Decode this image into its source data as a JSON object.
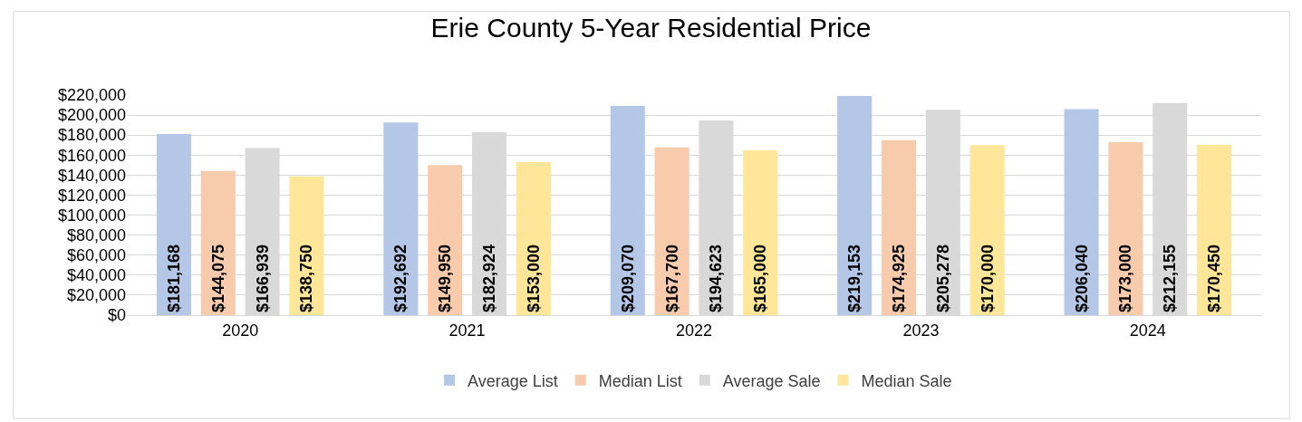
{
  "chart_data": {
    "type": "bar",
    "title": "Erie County 5-Year Residential Price",
    "categories": [
      "2020",
      "2021",
      "2022",
      "2023",
      "2024"
    ],
    "series": [
      {
        "name": "Average List",
        "color": "#b4c7e7",
        "values": [
          181168,
          192692,
          209070,
          219153,
          206040
        ],
        "value_labels": [
          "$181,168",
          "$192,692",
          "$209,070",
          "$219,153",
          "$206,040"
        ]
      },
      {
        "name": "Median List",
        "color": "#f8cbad",
        "values": [
          144075,
          149950,
          167700,
          174925,
          173000
        ],
        "value_labels": [
          "$144,075",
          "$149,950",
          "$167,700",
          "$174,925",
          "$173,000"
        ]
      },
      {
        "name": "Average Sale",
        "color": "#d9d9d9",
        "values": [
          166939,
          182924,
          194623,
          205278,
          212155
        ],
        "value_labels": [
          "$166,939",
          "$182,924",
          "$194,623",
          "$205,278",
          "$212,155"
        ]
      },
      {
        "name": "Median Sale",
        "color": "#ffe699",
        "values": [
          138750,
          153000,
          165000,
          170000,
          170450
        ],
        "value_labels": [
          "$138,750",
          "$153,000",
          "$165,000",
          "$170,000",
          "$170,450"
        ]
      }
    ],
    "ylim": [
      0,
      220000
    ],
    "yticks": [
      {
        "value": 0,
        "label": "$0"
      },
      {
        "value": 20000,
        "label": "$20,000"
      },
      {
        "value": 40000,
        "label": "$40,000"
      },
      {
        "value": 60000,
        "label": "$60,000"
      },
      {
        "value": 80000,
        "label": "$80,000"
      },
      {
        "value": 100000,
        "label": "$100,000"
      },
      {
        "value": 120000,
        "label": "$120,000"
      },
      {
        "value": 140000,
        "label": "$140,000"
      },
      {
        "value": 160000,
        "label": "$160,000"
      },
      {
        "value": 180000,
        "label": "$180,000"
      },
      {
        "value": 200000,
        "label": "$200,000"
      },
      {
        "value": 220000,
        "label": "$220,000"
      }
    ],
    "grid": "y",
    "legend": "bottom"
  }
}
